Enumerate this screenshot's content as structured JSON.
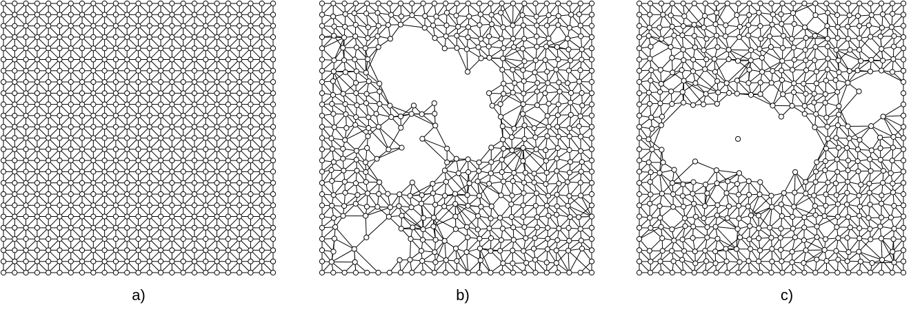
{
  "figure": {
    "panels": [
      {
        "caption": "a)",
        "mesh": "regular-triangular",
        "seed": 0
      },
      {
        "caption": "b)",
        "mesh": "irregular-triangulation",
        "seed": 7
      },
      {
        "caption": "c)",
        "mesh": "irregular-triangulation",
        "seed": 19
      }
    ],
    "colors": {
      "edge": "#000000",
      "node_fill": "#ffffff",
      "node_stroke": "#000000",
      "background": "#ffffff"
    }
  }
}
